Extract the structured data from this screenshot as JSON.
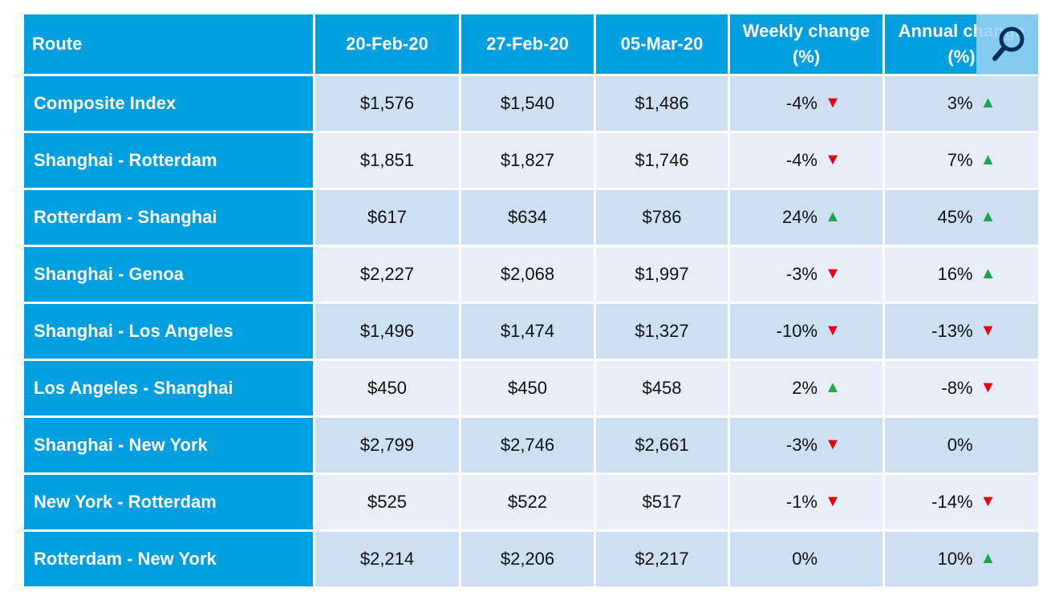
{
  "table": {
    "columns": [
      "Route",
      "20-Feb-20",
      "27-Feb-20",
      "05-Mar-20",
      "Weekly change (%)",
      "Annual change (%)"
    ],
    "rows": [
      [
        "Composite Index",
        "$1,576",
        "$1,540",
        "$1,486",
        "-4%",
        "3%"
      ],
      [
        "Shanghai - Rotterdam",
        "$1,851",
        "$1,827",
        "$1,746",
        "-4%",
        "7%"
      ],
      [
        "Rotterdam - Shanghai",
        "$617",
        "$634",
        "$786",
        "24%",
        "45%"
      ],
      [
        "Shanghai - Genoa",
        "$2,227",
        "$2,068",
        "$1,997",
        "-3%",
        "16%"
      ],
      [
        "Shanghai - Los Angeles",
        "$1,496",
        "$1,474",
        "$1,327",
        "-10%",
        "-13%"
      ],
      [
        "Los Angeles - Shanghai",
        "$450",
        "$450",
        "$458",
        "2%",
        "-8%"
      ],
      [
        "Shanghai - New York",
        "$2,799",
        "$2,746",
        "$2,661",
        "-3%",
        "0%"
      ],
      [
        "New York - Rotterdam",
        "$525",
        "$522",
        "$517",
        "-1%",
        "-14%"
      ],
      [
        "Rotterdam - New York",
        "$2,214",
        "$2,206",
        "$2,217",
        "0%",
        "10%"
      ]
    ]
  }
}
